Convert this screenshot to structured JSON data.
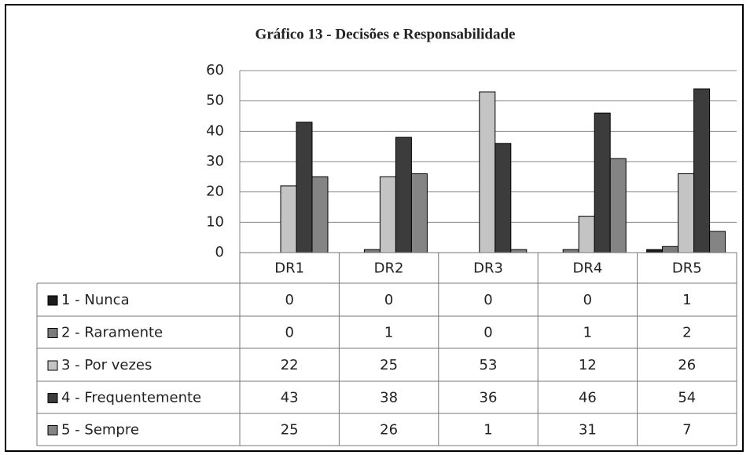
{
  "chart_data": {
    "type": "bar",
    "title": "Gráfico 13 - Decisões e Responsabilidade",
    "categories": [
      "DR1",
      "DR2",
      "DR3",
      "DR4",
      "DR5"
    ],
    "series": [
      {
        "name": "1 - Nunca",
        "color": "#1c1c1c",
        "values": [
          0,
          0,
          0,
          0,
          1
        ]
      },
      {
        "name": "2 - Raramente",
        "color": "#7b7b7b",
        "values": [
          0,
          1,
          0,
          1,
          2
        ]
      },
      {
        "name": "3 - Por vezes",
        "color": "#c4c4c4",
        "values": [
          22,
          25,
          53,
          12,
          26
        ]
      },
      {
        "name": "4 - Frequentemente",
        "color": "#3c3c3c",
        "values": [
          43,
          38,
          36,
          46,
          54
        ]
      },
      {
        "name": "5 - Sempre",
        "color": "#848484",
        "values": [
          25,
          26,
          1,
          31,
          7
        ]
      }
    ],
    "ylim": [
      0,
      60
    ],
    "yticks": [
      0,
      10,
      20,
      30,
      40,
      50,
      60
    ],
    "grid": true
  }
}
